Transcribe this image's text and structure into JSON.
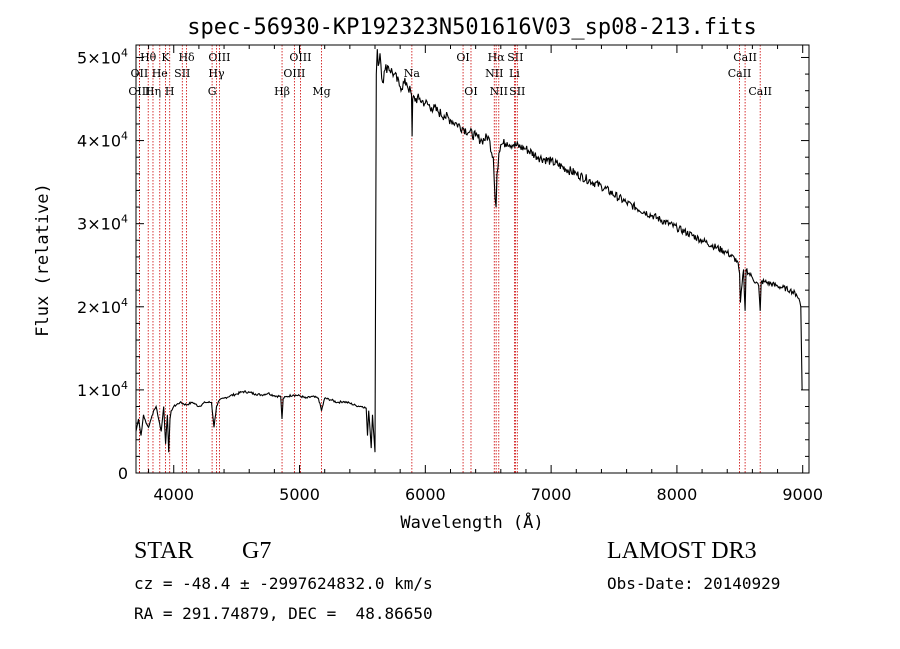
{
  "chart_data": {
    "type": "line",
    "title": "spec-56930-KP192323N501616V03_sp08-213.fits",
    "xlabel": "Wavelength (Å)",
    "ylabel": "Flux (relative)",
    "xlim": [
      3700,
      9050
    ],
    "ylim": [
      0,
      51500
    ],
    "xticks": [
      4000,
      5000,
      6000,
      7000,
      8000,
      9000
    ],
    "xtick_labels": [
      "4000",
      "5000",
      "6000",
      "7000",
      "8000",
      "9000"
    ],
    "yticks": [
      0,
      10000,
      20000,
      30000,
      40000,
      50000
    ],
    "ytick_labels": [
      {
        "mant": "0",
        "exp": ""
      },
      {
        "mant": "1×10",
        "exp": "4"
      },
      {
        "mant": "2×10",
        "exp": "4"
      },
      {
        "mant": "3×10",
        "exp": "4"
      },
      {
        "mant": "4×10",
        "exp": "4"
      },
      {
        "mant": "5×10",
        "exp": "4"
      }
    ],
    "series": [
      {
        "name": "spectrum",
        "x": [
          3700,
          3720,
          3740,
          3760,
          3780,
          3800,
          3820,
          3840,
          3860,
          3880,
          3900,
          3920,
          3935,
          3950,
          3960,
          3970,
          3980,
          4000,
          4050,
          4100,
          4150,
          4200,
          4250,
          4300,
          4320,
          4340,
          4360,
          4400,
          4450,
          4500,
          4550,
          4600,
          4650,
          4700,
          4750,
          4800,
          4850,
          4861,
          4870,
          4900,
          4950,
          5000,
          5050,
          5100,
          5150,
          5175,
          5200,
          5250,
          5300,
          5350,
          5400,
          5450,
          5500,
          5530,
          5540,
          5550,
          5570,
          5580,
          5600,
          5610,
          5618,
          5625,
          5640,
          5660,
          5680,
          5700,
          5750,
          5800,
          5850,
          5890,
          5895,
          5900,
          5950,
          6000,
          6050,
          6100,
          6150,
          6200,
          6250,
          6300,
          6350,
          6400,
          6450,
          6500,
          6540,
          6555,
          6563,
          6570,
          6585,
          6600,
          6650,
          6700,
          6800,
          6900,
          7000,
          7200,
          7400,
          7600,
          7800,
          8000,
          8200,
          8400,
          8480,
          8498,
          8505,
          8530,
          8542,
          8550,
          8600,
          8650,
          8662,
          8670,
          8700,
          8800,
          8900,
          8950,
          8970,
          8985,
          8995
        ],
        "y": [
          5000,
          6500,
          4500,
          7000,
          6000,
          5500,
          6500,
          7500,
          8000,
          6500,
          5000,
          8000,
          3500,
          7000,
          2500,
          6500,
          7500,
          8000,
          8500,
          8200,
          8500,
          8000,
          8500,
          8500,
          5500,
          8000,
          8700,
          9000,
          9300,
          9500,
          9800,
          9700,
          9500,
          9400,
          9600,
          9300,
          9200,
          6500,
          9000,
          9200,
          9400,
          9300,
          9000,
          9200,
          9000,
          7500,
          9000,
          8800,
          8500,
          8600,
          8400,
          8100,
          8000,
          7800,
          4500,
          7500,
          3000,
          7000,
          2500,
          48000,
          51000,
          49000,
          50500,
          47000,
          48500,
          49000,
          48000,
          46500,
          47000,
          45500,
          40500,
          45000,
          45000,
          44500,
          44000,
          43500,
          43000,
          42500,
          42000,
          41500,
          41000,
          40500,
          40000,
          40500,
          38000,
          33000,
          32000,
          36000,
          38500,
          39500,
          39800,
          39500,
          39000,
          38000,
          37500,
          36000,
          34500,
          32500,
          31000,
          29500,
          28000,
          26500,
          25500,
          24000,
          20500,
          24500,
          19500,
          24500,
          23500,
          22500,
          19500,
          23000,
          23000,
          22500,
          22000,
          21500,
          21000,
          20000,
          10000
        ]
      }
    ],
    "lines": [
      {
        "label": "Hθ",
        "wl": 3797,
        "row": 0
      },
      {
        "label": "OII",
        "wl": 3727,
        "row": 1
      },
      {
        "label": "OIII",
        "wl": 3727,
        "row": 2
      },
      {
        "label": "He",
        "wl": 3889,
        "row": 1
      },
      {
        "label": "Hη",
        "wl": 3835,
        "row": 2
      },
      {
        "label": "K",
        "wl": 3934,
        "row": 0
      },
      {
        "label": "H",
        "wl": 3968,
        "row": 2
      },
      {
        "label": "SII",
        "wl": 4068,
        "row": 1
      },
      {
        "label": "Hδ",
        "wl": 4102,
        "row": 0
      },
      {
        "label": "OIII",
        "wl": 4363,
        "row": 0
      },
      {
        "label": "Hγ",
        "wl": 4340,
        "row": 1
      },
      {
        "label": "G",
        "wl": 4305,
        "row": 2
      },
      {
        "label": "Hβ",
        "wl": 4861,
        "row": 2
      },
      {
        "label": "OIII",
        "wl": 5007,
        "row": 0
      },
      {
        "label": "OIII",
        "wl": 4959,
        "row": 1
      },
      {
        "label": "Mg",
        "wl": 5175,
        "row": 2
      },
      {
        "label": "Na",
        "wl": 5893,
        "row": 1
      },
      {
        "label": "OI",
        "wl": 6300,
        "row": 0
      },
      {
        "label": "OI",
        "wl": 6363,
        "row": 2
      },
      {
        "label": "Hα",
        "wl": 6563,
        "row": 0
      },
      {
        "label": "NII",
        "wl": 6548,
        "row": 1
      },
      {
        "label": "NII",
        "wl": 6584,
        "row": 2
      },
      {
        "label": "SII",
        "wl": 6716,
        "row": 0
      },
      {
        "label": "Li",
        "wl": 6708,
        "row": 1
      },
      {
        "label": "SII",
        "wl": 6731,
        "row": 2
      },
      {
        "label": "CaII",
        "wl": 8542,
        "row": 0
      },
      {
        "label": "CaII",
        "wl": 8498,
        "row": 1
      },
      {
        "label": "CaII",
        "wl": 8662,
        "row": 2
      }
    ],
    "colors": {
      "spectrum": "#000000",
      "lines": "#cc0000"
    }
  },
  "footer": {
    "class_label": "STAR",
    "subclass": "G7",
    "survey": "LAMOST DR3",
    "redshift": "cz = -48.4 ± -2997624832.0 km/s",
    "obs_date": "Obs-Date: 20140929",
    "coords": "RA = 291.74879, DEC =  48.86650"
  }
}
